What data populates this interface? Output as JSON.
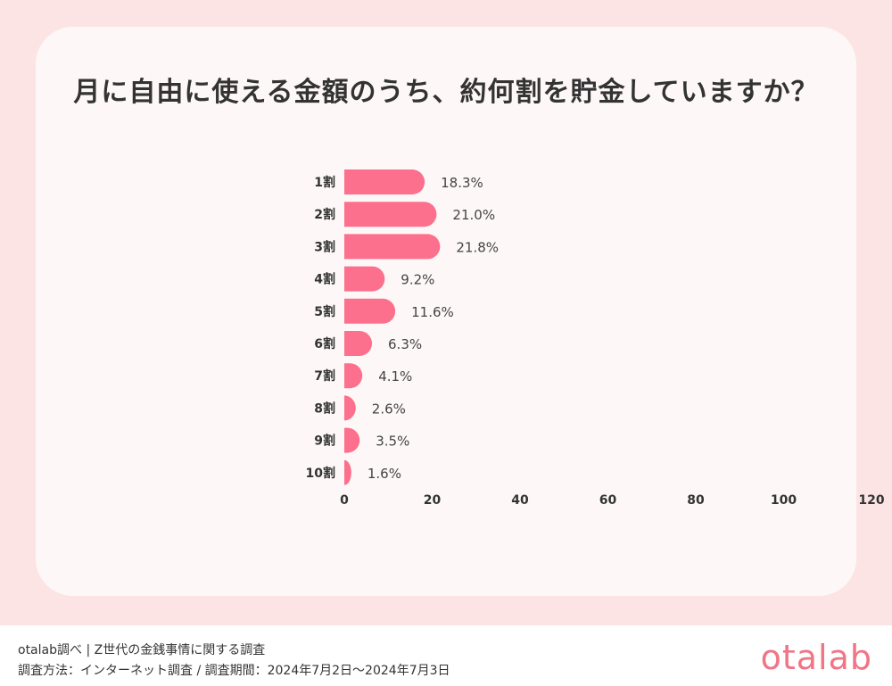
{
  "title": "月に自由に使える金額のうち、約何割を貯金していますか？",
  "footer": {
    "line1": "otalab調べ | Z世代の金銭事情に関する調査",
    "line2": "調査方法：インターネット調査 / 調査期間：2024年7月2日〜2024年7月3日",
    "logo": "otalab"
  },
  "colors": {
    "bar": "#fc6f8d",
    "background": "#fde4e4",
    "card": "#fdf8f7",
    "logo": "#f07586"
  },
  "chart_data": {
    "type": "bar",
    "orientation": "horizontal",
    "categories": [
      "1割",
      "2割",
      "3割",
      "4割",
      "5割",
      "6割",
      "7割",
      "8割",
      "9割",
      "10割"
    ],
    "values": [
      18.3,
      21.0,
      21.8,
      9.2,
      11.6,
      6.3,
      4.1,
      2.6,
      3.5,
      1.6
    ],
    "value_labels": [
      "18.3%",
      "21.0%",
      "21.8%",
      "9.2%",
      "11.6%",
      "6.3%",
      "4.1%",
      "2.6%",
      "3.5%",
      "1.6%"
    ],
    "x_ticks": [
      "0",
      "20",
      "40",
      "60",
      "80",
      "100",
      "120"
    ],
    "xlim": [
      0,
      120
    ],
    "grid": false,
    "legend": "none"
  }
}
